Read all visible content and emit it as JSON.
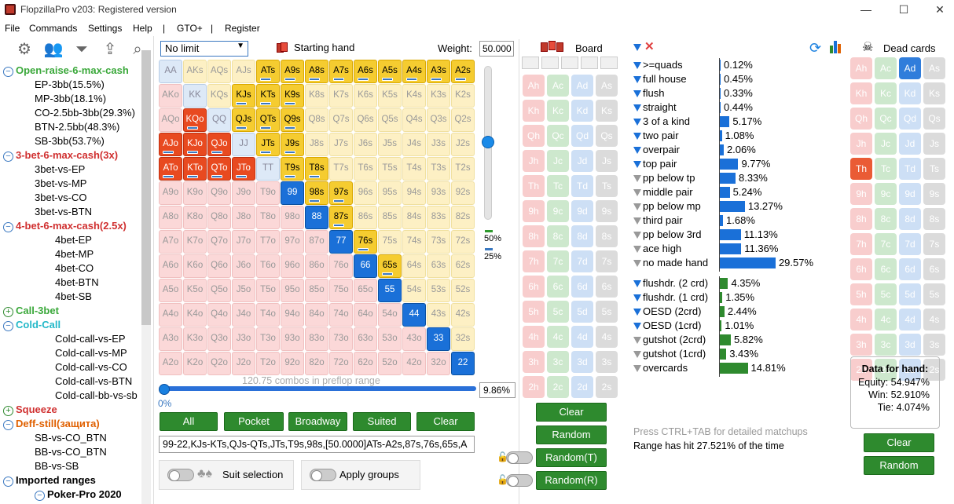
{
  "window": {
    "title": "FlopzillaPro v203: Registered version",
    "min": "—",
    "max": "☐",
    "close": "✕"
  },
  "menu": [
    "File",
    "Commands",
    "Settings",
    "Help",
    "|",
    "GTO+",
    "|",
    "Register"
  ],
  "tree": [
    {
      "label": "Open-raise-6-max-cash",
      "style": "g",
      "level": 0,
      "icon": "minus"
    },
    {
      "label": "EP-3bb(15.5%)",
      "style": "",
      "level": 1
    },
    {
      "label": "MP-3bb(18.1%)",
      "style": "",
      "level": 1
    },
    {
      "label": "CO-2.5bb-3bb(29.3%)",
      "style": "",
      "level": 1
    },
    {
      "label": "BTN-2.5bb(48.3%)",
      "style": "",
      "level": 1
    },
    {
      "label": "SB-3bb(53.7%)",
      "style": "",
      "level": 1
    },
    {
      "label": "3-bet-6-max-cash(3x)",
      "style": "r",
      "level": 0,
      "icon": "minus"
    },
    {
      "label": "3bet-vs-EP",
      "style": "",
      "level": 1
    },
    {
      "label": "3bet-vs-MP",
      "style": "",
      "level": 1
    },
    {
      "label": "3bet-vs-CO",
      "style": "",
      "level": 1
    },
    {
      "label": "3bet-vs-BTN",
      "style": "",
      "level": 1
    },
    {
      "label": "4-bet-6-max-cash(2.5x)",
      "style": "r",
      "level": 0,
      "icon": "minus"
    },
    {
      "label": "4bet-EP",
      "style": "",
      "level": 2
    },
    {
      "label": "4bet-MP",
      "style": "",
      "level": 2
    },
    {
      "label": "4bet-CO",
      "style": "",
      "level": 2
    },
    {
      "label": "4bet-BTN",
      "style": "",
      "level": 2
    },
    {
      "label": "4bet-SB",
      "style": "",
      "level": 2
    },
    {
      "label": "Call-3bet",
      "style": "g",
      "level": 0,
      "icon": "plus"
    },
    {
      "label": "Cold-Call",
      "style": "c",
      "level": 0,
      "icon": "minus"
    },
    {
      "label": "Cold-call-vs-EP",
      "style": "",
      "level": 2
    },
    {
      "label": "Cold-call-vs-MP",
      "style": "",
      "level": 2
    },
    {
      "label": "Cold-call-vs-CO",
      "style": "",
      "level": 2
    },
    {
      "label": "Cold-call-vs-BTN",
      "style": "",
      "level": 2
    },
    {
      "label": "Cold-call-bb-vs-sb",
      "style": "",
      "level": 2
    },
    {
      "label": "Squeeze",
      "style": "r",
      "level": 0,
      "icon": "plus"
    },
    {
      "label": "Deff-still(защита)",
      "style": "o",
      "level": 0,
      "icon": "minus"
    },
    {
      "label": "SB-vs-CO_BTN",
      "style": "",
      "level": 1
    },
    {
      "label": "BB-vs-CO_BTN",
      "style": "",
      "level": 1
    },
    {
      "label": "BB-vs-SB",
      "style": "",
      "level": 1
    },
    {
      "label": "Imported ranges",
      "style": "dk",
      "level": 0,
      "icon": "minus"
    },
    {
      "label": "Poker-Pro 2020",
      "style": "dk",
      "level": 1,
      "icon": "minus"
    }
  ],
  "controls": {
    "limit": "No limit",
    "starting_hand": "Starting hand",
    "weight_label": "Weight:",
    "weight_value": "50.000",
    "combos": "120.75 combos in preflop range",
    "pct_min": "0%",
    "pct_value": "9.86%",
    "pct50": "50%",
    "pct25": "25%",
    "slider_level": 0.48,
    "buttons": [
      "All",
      "Pocket",
      "Broadway",
      "Suited",
      "Clear"
    ],
    "range_string": "99-22,KJs-KTs,QJs-QTs,JTs,T9s,98s,[50.0000]ATs-A2s,87s,76s,65s,A",
    "suit_selection": "Suit selection",
    "apply_groups": "Apply groups"
  },
  "grid": [
    [
      "AA",
      "AKs",
      "AQs",
      "AJs",
      "ATs",
      "A9s",
      "A8s",
      "A7s",
      "A6s",
      "A5s",
      "A4s",
      "A3s",
      "A2s"
    ],
    [
      "AKo",
      "KK",
      "KQs",
      "KJs",
      "KTs",
      "K9s",
      "K8s",
      "K7s",
      "K6s",
      "K5s",
      "K4s",
      "K3s",
      "K2s"
    ],
    [
      "AQo",
      "KQo",
      "QQ",
      "QJs",
      "QTs",
      "Q9s",
      "Q8s",
      "Q7s",
      "Q6s",
      "Q5s",
      "Q4s",
      "Q3s",
      "Q2s"
    ],
    [
      "AJo",
      "KJo",
      "QJo",
      "JJ",
      "JTs",
      "J9s",
      "J8s",
      "J7s",
      "J6s",
      "J5s",
      "J4s",
      "J3s",
      "J2s"
    ],
    [
      "ATo",
      "KTo",
      "QTo",
      "JTo",
      "TT",
      "T9s",
      "T8s",
      "T7s",
      "T6s",
      "T5s",
      "T4s",
      "T3s",
      "T2s"
    ],
    [
      "A9o",
      "K9o",
      "Q9o",
      "J9o",
      "T9o",
      "99",
      "98s",
      "97s",
      "96s",
      "95s",
      "94s",
      "93s",
      "92s"
    ],
    [
      "A8o",
      "K8o",
      "Q8o",
      "J8o",
      "T8o",
      "98o",
      "88",
      "87s",
      "86s",
      "85s",
      "84s",
      "83s",
      "82s"
    ],
    [
      "A7o",
      "K7o",
      "Q7o",
      "J7o",
      "T7o",
      "97o",
      "87o",
      "77",
      "76s",
      "75s",
      "74s",
      "73s",
      "72s"
    ],
    [
      "A6o",
      "K6o",
      "Q6o",
      "J6o",
      "T6o",
      "96o",
      "86o",
      "76o",
      "66",
      "65s",
      "64s",
      "63s",
      "62s"
    ],
    [
      "A5o",
      "K5o",
      "Q5o",
      "J5o",
      "T5o",
      "95o",
      "85o",
      "75o",
      "65o",
      "55",
      "54s",
      "53s",
      "52s"
    ],
    [
      "A4o",
      "K4o",
      "Q4o",
      "J4o",
      "T4o",
      "94o",
      "84o",
      "74o",
      "64o",
      "54o",
      "44",
      "43s",
      "42s"
    ],
    [
      "A3o",
      "K3o",
      "Q3o",
      "J3o",
      "T3o",
      "93o",
      "83o",
      "73o",
      "63o",
      "53o",
      "43o",
      "33",
      "32s"
    ],
    [
      "A2o",
      "K2o",
      "Q2o",
      "J2o",
      "T2o",
      "92o",
      "82o",
      "72o",
      "62o",
      "52o",
      "42o",
      "32o",
      "22"
    ]
  ],
  "grid_state": [
    [
      "p",
      "s",
      "s",
      "s",
      "S",
      "S",
      "S",
      "S",
      "S",
      "S",
      "S",
      "S",
      "S"
    ],
    [
      "o",
      "p",
      "s",
      "S",
      "S",
      "S",
      "s",
      "s",
      "s",
      "s",
      "s",
      "s",
      "s"
    ],
    [
      "o",
      "O",
      "p",
      "S",
      "S",
      "S",
      "s",
      "s",
      "s",
      "s",
      "s",
      "s",
      "s"
    ],
    [
      "O",
      "O",
      "O",
      "p",
      "S",
      "S",
      "s",
      "s",
      "s",
      "s",
      "s",
      "s",
      "s"
    ],
    [
      "O",
      "O",
      "O",
      "O",
      "p",
      "S",
      "S",
      "s",
      "s",
      "s",
      "s",
      "s",
      "s"
    ],
    [
      "o",
      "o",
      "o",
      "o",
      "o",
      "P",
      "S",
      "S",
      "s",
      "s",
      "s",
      "s",
      "s"
    ],
    [
      "o",
      "o",
      "o",
      "o",
      "o",
      "o",
      "P",
      "S",
      "s",
      "s",
      "s",
      "s",
      "s"
    ],
    [
      "o",
      "o",
      "o",
      "o",
      "o",
      "o",
      "o",
      "P",
      "S",
      "s",
      "s",
      "s",
      "s"
    ],
    [
      "o",
      "o",
      "o",
      "o",
      "o",
      "o",
      "o",
      "o",
      "P",
      "S",
      "s",
      "s",
      "s"
    ],
    [
      "o",
      "o",
      "o",
      "o",
      "o",
      "o",
      "o",
      "o",
      "o",
      "P",
      "s",
      "s",
      "s"
    ],
    [
      "o",
      "o",
      "o",
      "o",
      "o",
      "o",
      "o",
      "o",
      "o",
      "o",
      "P",
      "s",
      "s"
    ],
    [
      "o",
      "o",
      "o",
      "o",
      "o",
      "o",
      "o",
      "o",
      "o",
      "o",
      "o",
      "P",
      "s"
    ],
    [
      "o",
      "o",
      "o",
      "o",
      "o",
      "o",
      "o",
      "o",
      "o",
      "o",
      "o",
      "o",
      "P"
    ]
  ],
  "board": {
    "title": "Board",
    "ranks": [
      "A",
      "K",
      "Q",
      "J",
      "T",
      "9",
      "8",
      "7",
      "6",
      "5",
      "4",
      "3",
      "2"
    ],
    "buttons": [
      "Clear",
      "Random",
      "Random(T)",
      "Random(R)"
    ]
  },
  "dead": {
    "title": "Dead cards",
    "buttons": [
      "Clear",
      "Random"
    ],
    "highlighted": [
      "Ad",
      "Th"
    ]
  },
  "stats": [
    {
      "label": ">=quads",
      "value": "0.12%",
      "pct": 0.12,
      "color": "b",
      "icon": "blue"
    },
    {
      "label": "full house",
      "value": "0.45%",
      "pct": 0.45,
      "color": "b",
      "icon": "blue"
    },
    {
      "label": "flush",
      "value": "0.33%",
      "pct": 0.33,
      "color": "b",
      "icon": "blue"
    },
    {
      "label": "straight",
      "value": "0.44%",
      "pct": 0.44,
      "color": "b",
      "icon": "blue"
    },
    {
      "label": "3 of a kind",
      "value": "5.17%",
      "pct": 5.17,
      "color": "b",
      "icon": "blue"
    },
    {
      "label": "two pair",
      "value": "1.08%",
      "pct": 1.08,
      "color": "b",
      "icon": "blue"
    },
    {
      "label": "overpair",
      "value": "2.06%",
      "pct": 2.06,
      "color": "b",
      "icon": "blue"
    },
    {
      "label": "top pair",
      "value": "9.77%",
      "pct": 9.77,
      "color": "b",
      "icon": "blue"
    },
    {
      "label": "pp below tp",
      "value": "8.33%",
      "pct": 8.33,
      "color": "b",
      "icon": "gray"
    },
    {
      "label": "middle pair",
      "value": "5.24%",
      "pct": 5.24,
      "color": "b",
      "icon": "gray"
    },
    {
      "label": "pp below mp",
      "value": "13.27%",
      "pct": 13.27,
      "color": "b",
      "icon": "gray"
    },
    {
      "label": "third pair",
      "value": "1.68%",
      "pct": 1.68,
      "color": "b",
      "icon": "gray"
    },
    {
      "label": "pp below 3rd",
      "value": "11.13%",
      "pct": 11.13,
      "color": "b",
      "icon": "gray"
    },
    {
      "label": "ace high",
      "value": "11.36%",
      "pct": 11.36,
      "color": "b",
      "icon": "gray"
    },
    {
      "label": "no made hand",
      "value": "29.57%",
      "pct": 29.57,
      "color": "b",
      "icon": "gray"
    }
  ],
  "draws": [
    {
      "label": "flushdr. (2 crd)",
      "value": "4.35%",
      "pct": 4.35,
      "icon": "blue"
    },
    {
      "label": "flushdr. (1 crd)",
      "value": "1.35%",
      "pct": 1.35,
      "icon": "blue"
    },
    {
      "label": "OESD (2crd)",
      "value": "2.44%",
      "pct": 2.44,
      "icon": "blue"
    },
    {
      "label": "OESD (1crd)",
      "value": "1.01%",
      "pct": 1.01,
      "icon": "blue"
    },
    {
      "label": "gutshot (2crd)",
      "value": "5.82%",
      "pct": 5.82,
      "icon": "gray"
    },
    {
      "label": "gutshot (1crd)",
      "value": "3.43%",
      "pct": 3.43,
      "icon": "gray"
    },
    {
      "label": "overcards",
      "value": "14.81%",
      "pct": 14.81,
      "icon": "gray"
    }
  ],
  "info": {
    "hint": "Press CTRL+TAB for detailed matchups",
    "hit": "Range has hit 27.521% of the time"
  },
  "hand_data": {
    "title": "Data for hand:",
    "equity": "Equity: 54.947%",
    "win": "Win: 52.910%",
    "tie": "Tie: 4.074%"
  }
}
